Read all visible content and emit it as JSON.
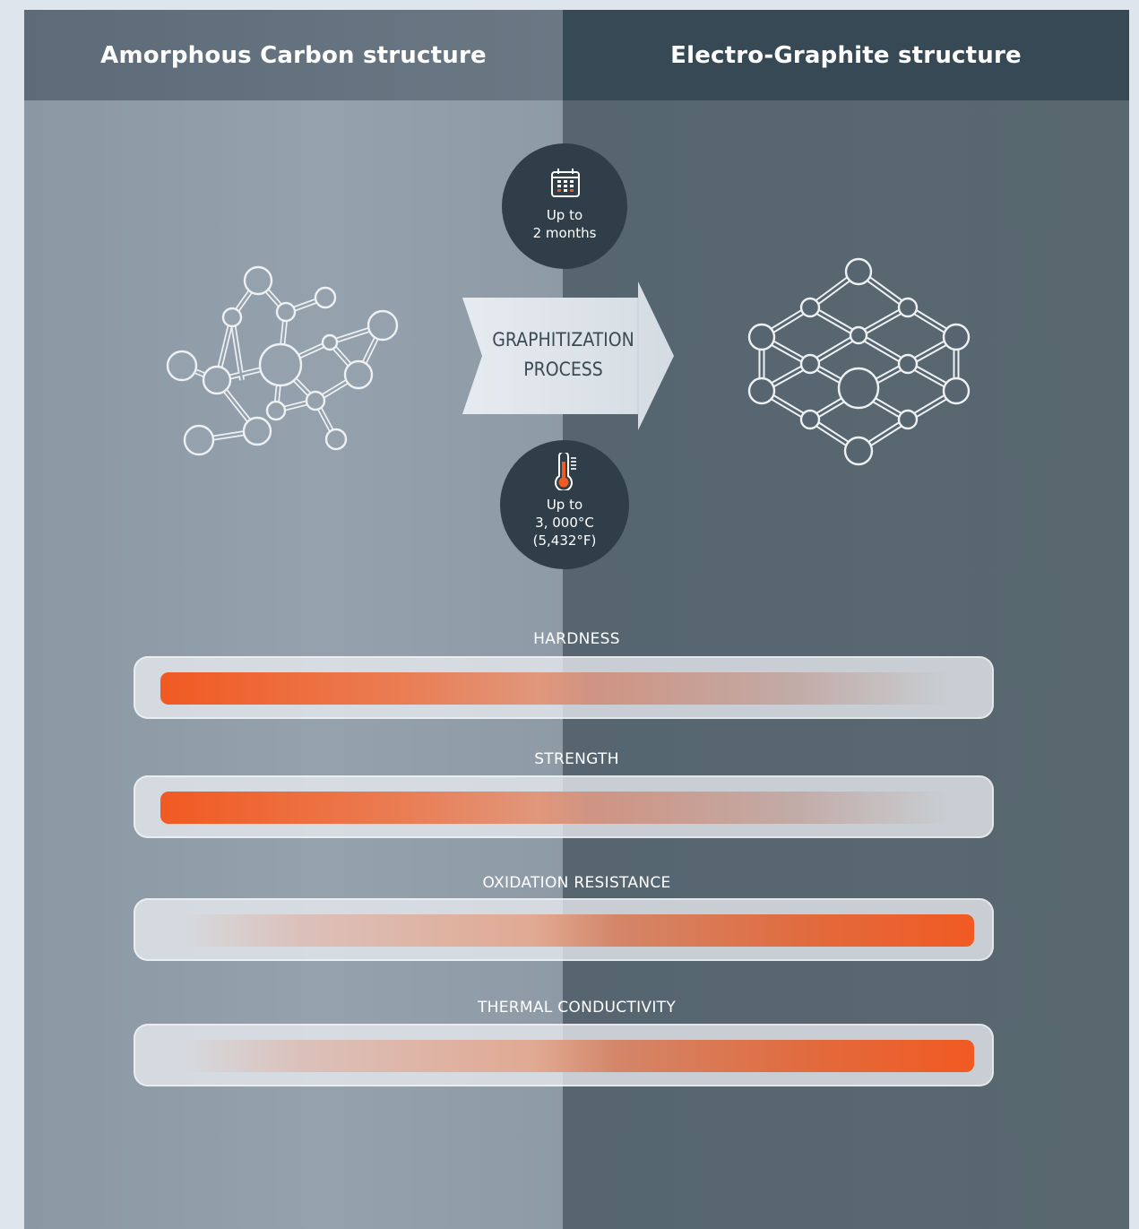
{
  "panels": {
    "left_title": "Amorphous Carbon structure",
    "right_title": "Electro-Graphite structure"
  },
  "process": {
    "line1": "GRAPHITIZATION",
    "line2": "PROCESS"
  },
  "time_badge": {
    "icon": "calendar-icon",
    "line1": "Up to",
    "line2": "2 months"
  },
  "temp_badge": {
    "icon": "thermometer-icon",
    "line1": "Up to",
    "line2": "3, 000°C",
    "line3": "(5,432°F)"
  },
  "properties": [
    {
      "label": "HARDNESS",
      "level": "high",
      "direction": "decreasing-toward-graphite"
    },
    {
      "label": "STRENGTH",
      "level": "high",
      "direction": "decreasing-toward-graphite"
    },
    {
      "label": "OXIDATION RESISTANCE",
      "level": "high",
      "direction": "increasing-toward-graphite"
    },
    {
      "label": "THERMAL CONDUCTIVITY",
      "level": "high",
      "direction": "increasing-toward-graphite"
    }
  ],
  "colors": {
    "accent": "#f05a23",
    "dark_badge": "#2f3e48",
    "header_right": "#374955",
    "panel_left": "#8e9ba7",
    "panel_right": "#566570"
  }
}
